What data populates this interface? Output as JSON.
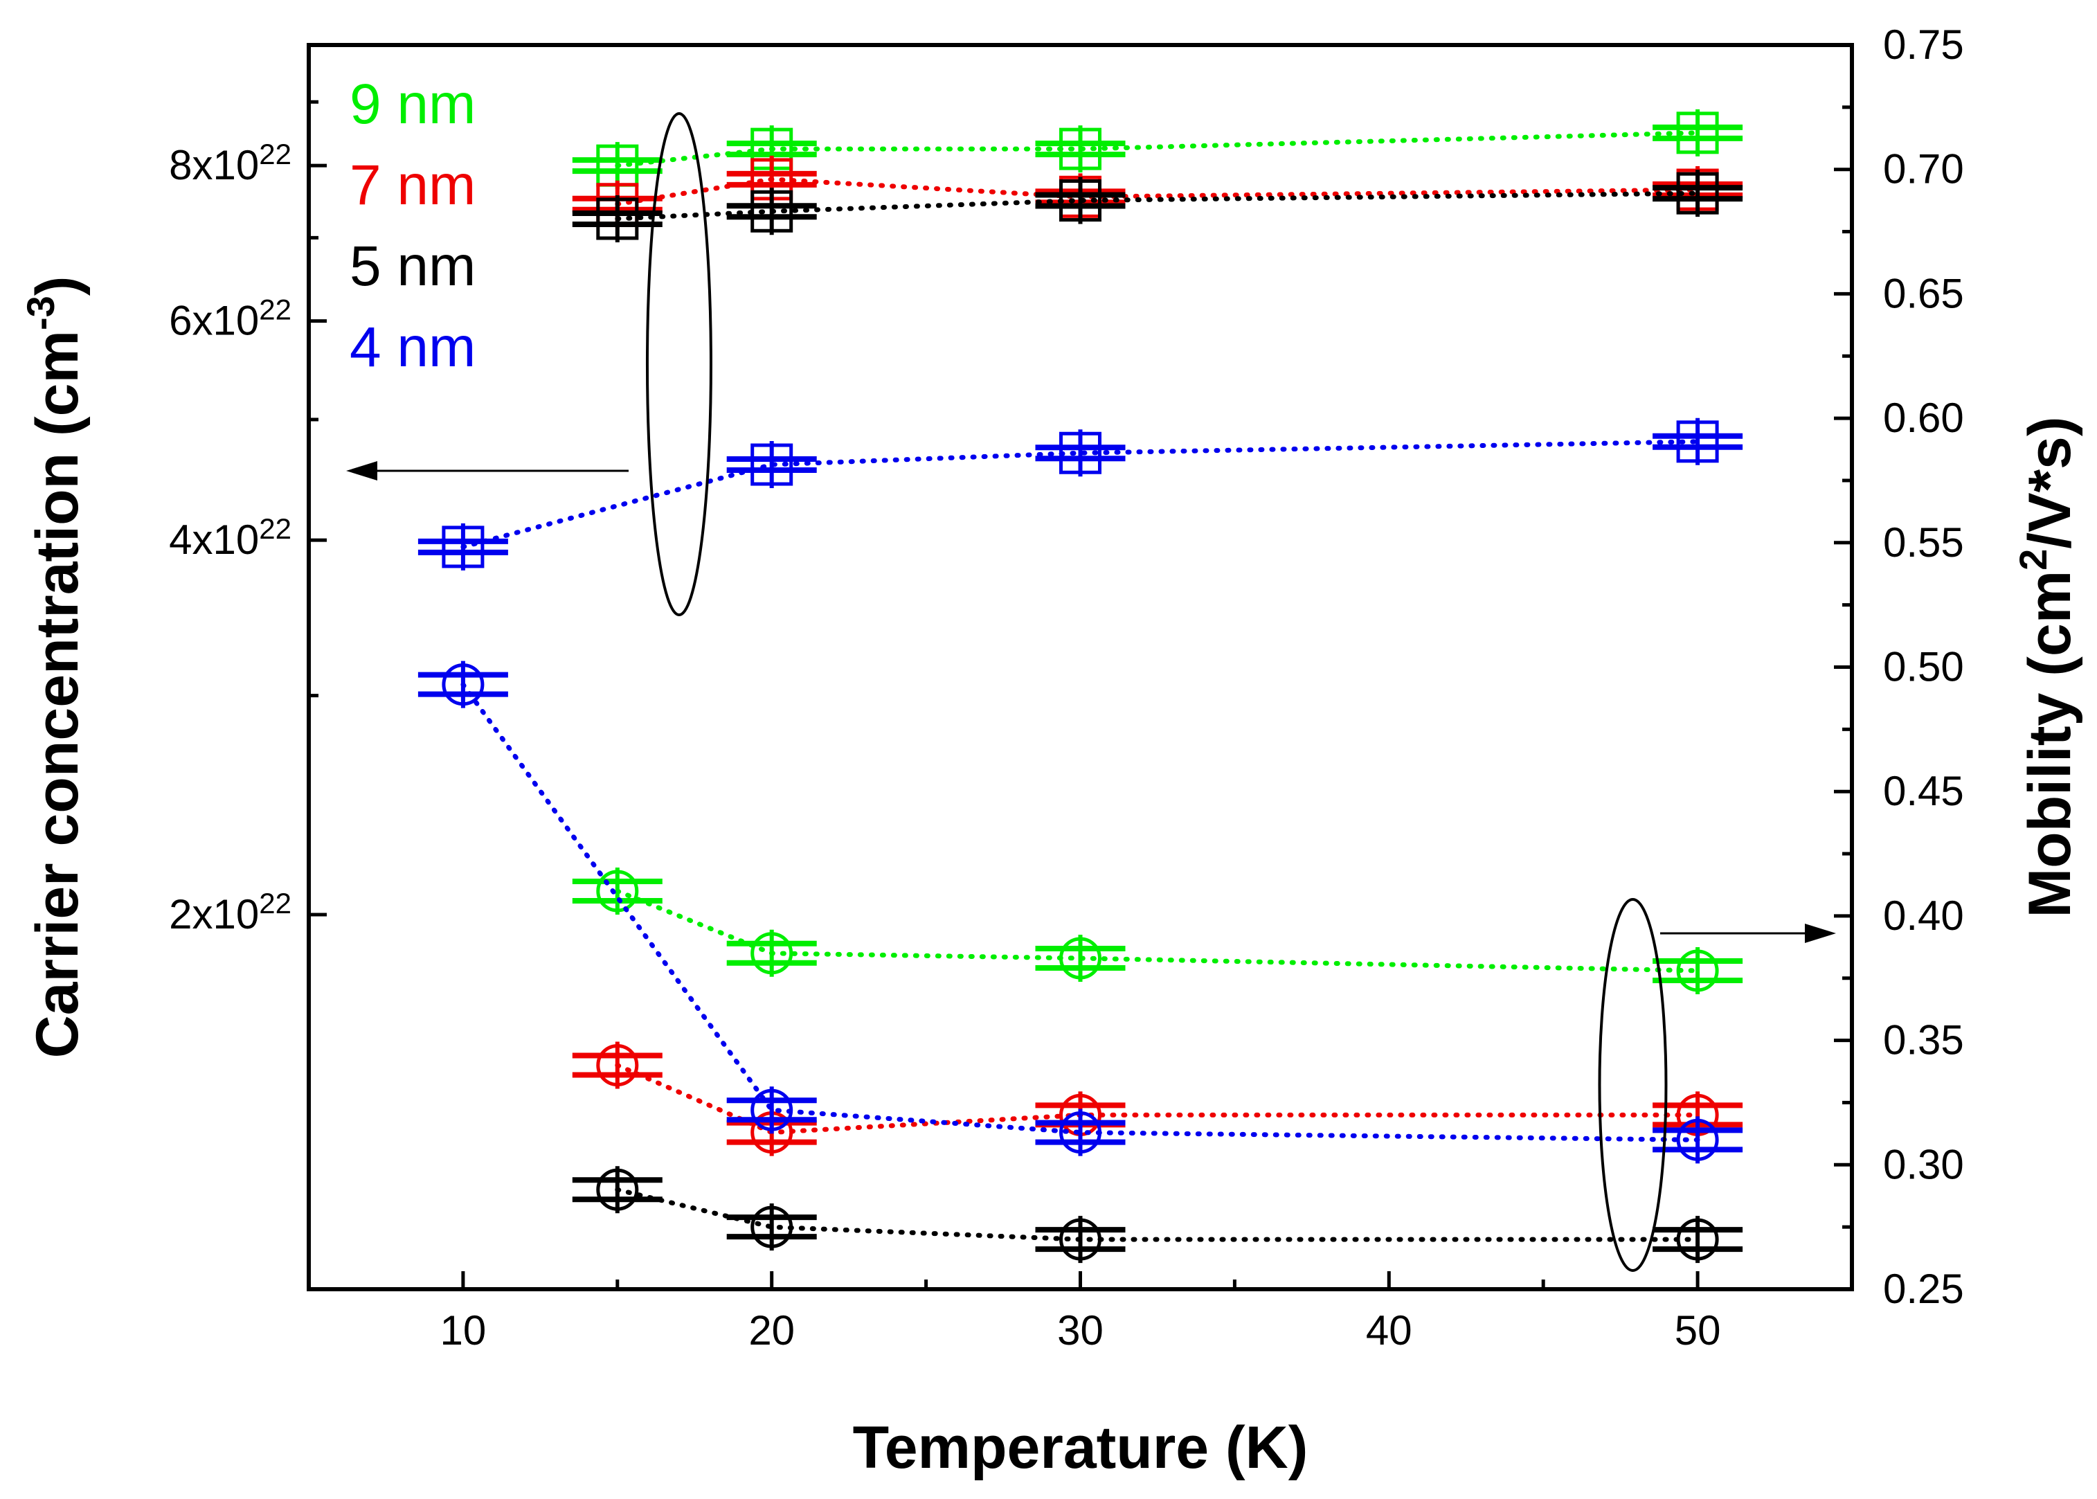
{
  "chart_data": {
    "type": "scatter",
    "xlabel": "Temperature (K)",
    "ylabel_left": "Carrier concentration (cm",
    "ylabel_left_sup": "-3",
    "ylabel_left_end": ")",
    "ylabel_right": "Mobility (cm",
    "ylabel_right_sup": "2",
    "ylabel_right_end": "/V*s)",
    "xlim": [
      5,
      55
    ],
    "x_ticks": [
      10,
      20,
      30,
      40,
      50
    ],
    "y_left_scale": "log",
    "y_left_lim": [
      1e+22,
      1e+23
    ],
    "y_left_ticks": [
      {
        "value": 2e+22,
        "mantissa": "2x10",
        "exp": "22"
      },
      {
        "value": 4e+22,
        "mantissa": "4x10",
        "exp": "22"
      },
      {
        "value": 6e+22,
        "mantissa": "6x10",
        "exp": "22"
      },
      {
        "value": 8e+22,
        "mantissa": "8x10",
        "exp": "22"
      }
    ],
    "y_right_lim": [
      0.25,
      0.75
    ],
    "y_right_ticks": [
      "0.25",
      "0.30",
      "0.35",
      "0.40",
      "0.45",
      "0.50",
      "0.55",
      "0.60",
      "0.65",
      "0.70",
      "0.75"
    ],
    "legend": [
      {
        "label": "9 nm",
        "color": "#00ee00"
      },
      {
        "label": "7 nm",
        "color": "#ee0000"
      },
      {
        "label": "5 nm",
        "color": "#000000"
      },
      {
        "label": "4 nm",
        "color": "#0000ee"
      }
    ],
    "series": [
      {
        "name": "9 nm",
        "color": "#00ee00",
        "quantity": "carrier_concentration",
        "marker": "square",
        "x": [
          15,
          20,
          30,
          50
        ],
        "y": [
          8e+22,
          8.25e+22,
          8.25e+22,
          8.5e+22
        ]
      },
      {
        "name": "7 nm",
        "color": "#ee0000",
        "quantity": "carrier_concentration",
        "marker": "square",
        "x": [
          15,
          20,
          30,
          50
        ],
        "y": [
          7.45e+22,
          7.8e+22,
          7.55e+22,
          7.65e+22
        ]
      },
      {
        "name": "5 nm",
        "color": "#000000",
        "quantity": "carrier_concentration",
        "marker": "square",
        "x": [
          15,
          20,
          30,
          50
        ],
        "y": [
          7.25e+22,
          7.35e+22,
          7.5e+22,
          7.6e+22
        ]
      },
      {
        "name": "4 nm",
        "color": "#0000ee",
        "quantity": "carrier_concentration",
        "marker": "square",
        "x": [
          10,
          20,
          30,
          50
        ],
        "y": [
          3.95e+22,
          4.6e+22,
          4.7e+22,
          4.8e+22
        ]
      },
      {
        "name": "9 nm",
        "color": "#00ee00",
        "quantity": "mobility",
        "marker": "circle",
        "x": [
          15,
          20,
          30,
          50
        ],
        "y": [
          0.41,
          0.385,
          0.383,
          0.378
        ]
      },
      {
        "name": "7 nm",
        "color": "#ee0000",
        "quantity": "mobility",
        "marker": "circle",
        "x": [
          15,
          20,
          30,
          50
        ],
        "y": [
          0.34,
          0.313,
          0.32,
          0.32
        ]
      },
      {
        "name": "5 nm",
        "color": "#000000",
        "quantity": "mobility",
        "marker": "circle",
        "x": [
          15,
          20,
          30,
          50
        ],
        "y": [
          0.29,
          0.275,
          0.27,
          0.27
        ]
      },
      {
        "name": "4 nm",
        "color": "#0000ee",
        "quantity": "mobility",
        "marker": "circle",
        "x": [
          10,
          20,
          30,
          50
        ],
        "y": [
          0.493,
          0.322,
          0.313,
          0.31
        ]
      }
    ],
    "annotations": [
      {
        "text": "ellipse around concentration points at 17 K with arrow pointing to left axis"
      },
      {
        "text": "ellipse around mobility points at 48 K with arrow pointing to right axis"
      }
    ]
  }
}
